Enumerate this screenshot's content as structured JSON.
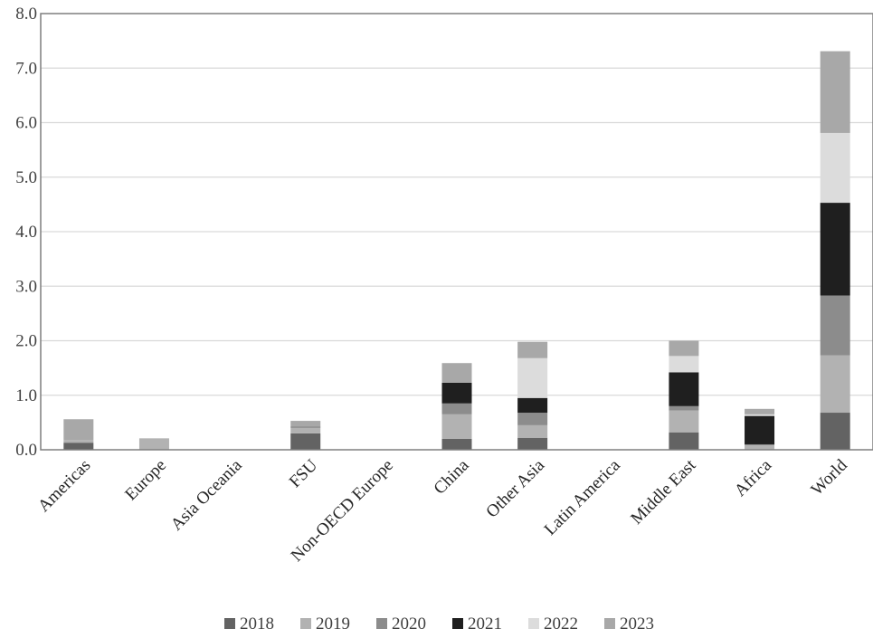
{
  "chart_data": {
    "type": "bar",
    "stacked": true,
    "categories": [
      "Americas",
      "Europe",
      "Asia Oceania",
      "FSU",
      "Non-OECD Europe",
      "China",
      "Other Asia",
      "Latin America",
      "Middle East",
      "Africa",
      "World"
    ],
    "series": [
      {
        "name": "2018",
        "color": "#636363",
        "values": [
          0.13,
          0.0,
          0.0,
          0.3,
          0.0,
          0.2,
          0.22,
          0.0,
          0.32,
          0.0,
          0.68
        ]
      },
      {
        "name": "2019",
        "color": "#b2b2b2",
        "values": [
          0.05,
          0.21,
          0.0,
          0.1,
          0.0,
          0.45,
          0.23,
          0.0,
          0.4,
          0.08,
          1.05
        ]
      },
      {
        "name": "2020",
        "color": "#8c8c8c",
        "values": [
          0.0,
          0.0,
          0.0,
          0.03,
          0.0,
          0.2,
          0.23,
          0.0,
          0.08,
          0.02,
          1.1
        ]
      },
      {
        "name": "2021",
        "color": "#1f1f1f",
        "values": [
          0.0,
          0.0,
          0.0,
          0.0,
          0.0,
          0.38,
          0.27,
          0.0,
          0.62,
          0.52,
          1.7
        ]
      },
      {
        "name": "2022",
        "color": "#dcdcdc",
        "values": [
          0.0,
          0.0,
          0.0,
          0.0,
          0.0,
          0.0,
          0.73,
          0.0,
          0.3,
          0.03,
          1.28
        ]
      },
      {
        "name": "2023",
        "color": "#a8a8a8",
        "values": [
          0.38,
          0.0,
          0.0,
          0.1,
          0.0,
          0.36,
          0.3,
          0.0,
          0.28,
          0.1,
          1.5
        ]
      }
    ],
    "ylim": [
      0,
      8.0
    ],
    "yticks": [
      "0.0",
      "1.0",
      "2.0",
      "3.0",
      "4.0",
      "5.0",
      "6.0",
      "7.0",
      "8.0"
    ],
    "grid": true,
    "legend": "bottom"
  }
}
